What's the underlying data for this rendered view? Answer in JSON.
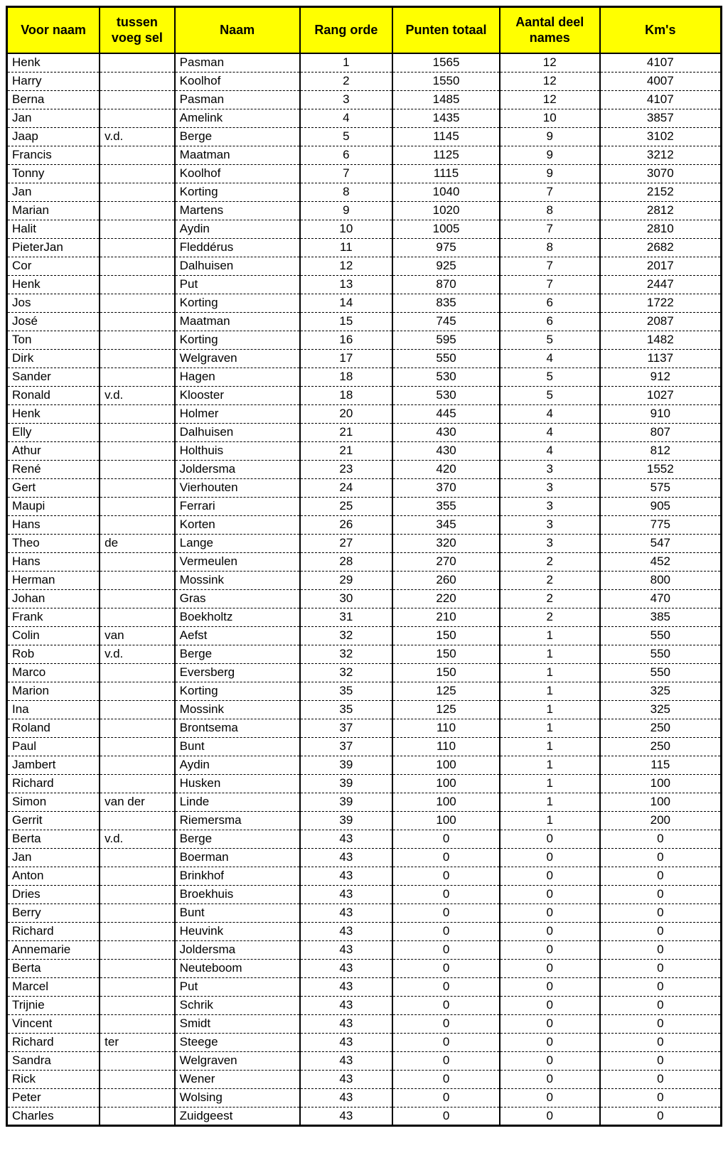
{
  "table": {
    "header_bg": "#ffff00",
    "border_color": "#000000",
    "columns": [
      {
        "label": "Voor naam",
        "align": "left"
      },
      {
        "label": "tussen voeg sel",
        "align": "left"
      },
      {
        "label": "Naam",
        "align": "left"
      },
      {
        "label": "Rang orde",
        "align": "center"
      },
      {
        "label": "Punten totaal",
        "align": "center"
      },
      {
        "label": "Aantal deel names",
        "align": "center"
      },
      {
        "label": "Km's",
        "align": "center"
      }
    ],
    "rows": [
      [
        "Henk",
        "",
        "Pasman",
        "1",
        "1565",
        "12",
        "4107"
      ],
      [
        "Harry",
        "",
        "Koolhof",
        "2",
        "1550",
        "12",
        "4007"
      ],
      [
        "Berna",
        "",
        "Pasman",
        "3",
        "1485",
        "12",
        "4107"
      ],
      [
        "Jan",
        "",
        "Amelink",
        "4",
        "1435",
        "10",
        "3857"
      ],
      [
        "Jaap",
        "v.d.",
        "Berge",
        "5",
        "1145",
        "9",
        "3102"
      ],
      [
        "Francis",
        "",
        "Maatman",
        "6",
        "1125",
        "9",
        "3212"
      ],
      [
        "Tonny",
        "",
        "Koolhof",
        "7",
        "1115",
        "9",
        "3070"
      ],
      [
        "Jan",
        "",
        "Korting",
        "8",
        "1040",
        "7",
        "2152"
      ],
      [
        "Marian",
        "",
        "Martens",
        "9",
        "1020",
        "8",
        "2812"
      ],
      [
        "Halit",
        "",
        "Aydin",
        "10",
        "1005",
        "7",
        "2810"
      ],
      [
        "PieterJan",
        "",
        "Fleddérus",
        "11",
        "975",
        "8",
        "2682"
      ],
      [
        "Cor",
        "",
        "Dalhuisen",
        "12",
        "925",
        "7",
        "2017"
      ],
      [
        "Henk",
        "",
        "Put",
        "13",
        "870",
        "7",
        "2447"
      ],
      [
        "Jos",
        "",
        "Korting",
        "14",
        "835",
        "6",
        "1722"
      ],
      [
        "José",
        "",
        "Maatman",
        "15",
        "745",
        "6",
        "2087"
      ],
      [
        "Ton",
        "",
        "Korting",
        "16",
        "595",
        "5",
        "1482"
      ],
      [
        "Dirk",
        "",
        "Welgraven",
        "17",
        "550",
        "4",
        "1137"
      ],
      [
        "Sander",
        "",
        "Hagen",
        "18",
        "530",
        "5",
        "912"
      ],
      [
        "Ronald",
        "v.d.",
        "Klooster",
        "18",
        "530",
        "5",
        "1027"
      ],
      [
        "Henk",
        "",
        "Holmer",
        "20",
        "445",
        "4",
        "910"
      ],
      [
        "Elly",
        "",
        "Dalhuisen",
        "21",
        "430",
        "4",
        "807"
      ],
      [
        "Athur",
        "",
        "Holthuis",
        "21",
        "430",
        "4",
        "812"
      ],
      [
        "René",
        "",
        "Joldersma",
        "23",
        "420",
        "3",
        "1552"
      ],
      [
        "Gert",
        "",
        "Vierhouten",
        "24",
        "370",
        "3",
        "575"
      ],
      [
        "Maupi",
        "",
        "Ferrari",
        "25",
        "355",
        "3",
        "905"
      ],
      [
        "Hans",
        "",
        "Korten",
        "26",
        "345",
        "3",
        "775"
      ],
      [
        "Theo",
        "de",
        "Lange",
        "27",
        "320",
        "3",
        "547"
      ],
      [
        "Hans",
        "",
        "Vermeulen",
        "28",
        "270",
        "2",
        "452"
      ],
      [
        "Herman",
        "",
        "Mossink",
        "29",
        "260",
        "2",
        "800"
      ],
      [
        "Johan",
        "",
        "Gras",
        "30",
        "220",
        "2",
        "470"
      ],
      [
        "Frank",
        "",
        "Boekholtz",
        "31",
        "210",
        "2",
        "385"
      ],
      [
        "Colin",
        "van",
        "Aefst",
        "32",
        "150",
        "1",
        "550"
      ],
      [
        "Rob",
        "v.d.",
        "Berge",
        "32",
        "150",
        "1",
        "550"
      ],
      [
        "Marco",
        "",
        "Eversberg",
        "32",
        "150",
        "1",
        "550"
      ],
      [
        "Marion",
        "",
        "Korting",
        "35",
        "125",
        "1",
        "325"
      ],
      [
        "Ina",
        "",
        "Mossink",
        "35",
        "125",
        "1",
        "325"
      ],
      [
        "Roland",
        "",
        "Brontsema",
        "37",
        "110",
        "1",
        "250"
      ],
      [
        "Paul",
        "",
        "Bunt",
        "37",
        "110",
        "1",
        "250"
      ],
      [
        "Jambert",
        "",
        "Aydin",
        "39",
        "100",
        "1",
        "115"
      ],
      [
        "Richard",
        "",
        "Husken",
        "39",
        "100",
        "1",
        "100"
      ],
      [
        "Simon",
        "van der",
        "Linde",
        "39",
        "100",
        "1",
        "100"
      ],
      [
        "Gerrit",
        "",
        "Riemersma",
        "39",
        "100",
        "1",
        "200"
      ],
      [
        "Berta",
        "v.d.",
        "Berge",
        "43",
        "0",
        "0",
        "0"
      ],
      [
        "Jan",
        "",
        "Boerman",
        "43",
        "0",
        "0",
        "0"
      ],
      [
        "Anton",
        "",
        "Brinkhof",
        "43",
        "0",
        "0",
        "0"
      ],
      [
        "Dries",
        "",
        "Broekhuis",
        "43",
        "0",
        "0",
        "0"
      ],
      [
        "Berry",
        "",
        "Bunt",
        "43",
        "0",
        "0",
        "0"
      ],
      [
        "Richard",
        "",
        "Heuvink",
        "43",
        "0",
        "0",
        "0"
      ],
      [
        "Annemarie",
        "",
        "Joldersma",
        "43",
        "0",
        "0",
        "0"
      ],
      [
        "Berta",
        "",
        "Neuteboom",
        "43",
        "0",
        "0",
        "0"
      ],
      [
        "Marcel",
        "",
        "Put",
        "43",
        "0",
        "0",
        "0"
      ],
      [
        "Trijnie",
        "",
        "Schrik",
        "43",
        "0",
        "0",
        "0"
      ],
      [
        "Vincent",
        "",
        "Smidt",
        "43",
        "0",
        "0",
        "0"
      ],
      [
        "Richard",
        "ter",
        "Steege",
        "43",
        "0",
        "0",
        "0"
      ],
      [
        "Sandra",
        "",
        "Welgraven",
        "43",
        "0",
        "0",
        "0"
      ],
      [
        "Rick",
        "",
        "Wener",
        "43",
        "0",
        "0",
        "0"
      ],
      [
        "Peter",
        "",
        "Wolsing",
        "43",
        "0",
        "0",
        "0"
      ],
      [
        "Charles",
        "",
        "Zuidgeest",
        "43",
        "0",
        "0",
        "0"
      ]
    ]
  }
}
